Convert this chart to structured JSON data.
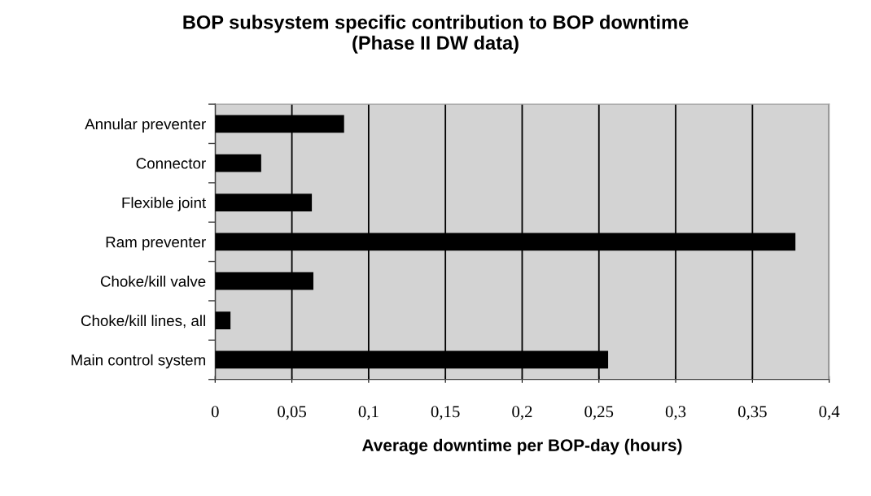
{
  "chart_data": {
    "type": "bar",
    "orientation": "horizontal",
    "title": "BOP subsystem specific contribution to BOP downtime\n(Phase II DW data)",
    "xlabel": "Average downtime per BOP-day (hours)",
    "categories": [
      "Annular preventer",
      "Connector",
      "Flexible joint",
      "Ram preventer",
      "Choke/kill valve",
      "Choke/kill lines, all",
      "Main control system"
    ],
    "values": [
      0.084,
      0.03,
      0.063,
      0.378,
      0.064,
      0.01,
      0.256
    ],
    "color": "#000000",
    "xlim": [
      0,
      0.4
    ],
    "xticks": [
      {
        "value": 0,
        "label": "0"
      },
      {
        "value": 0.05,
        "label": "0,05"
      },
      {
        "value": 0.1,
        "label": "0,1"
      },
      {
        "value": 0.15,
        "label": "0,15"
      },
      {
        "value": 0.2,
        "label": "0,2"
      },
      {
        "value": 0.25,
        "label": "0,25"
      },
      {
        "value": 0.3,
        "label": "0,3"
      },
      {
        "value": 0.35,
        "label": "0,35"
      },
      {
        "value": 0.4,
        "label": "0,4"
      }
    ],
    "grid": "x"
  }
}
